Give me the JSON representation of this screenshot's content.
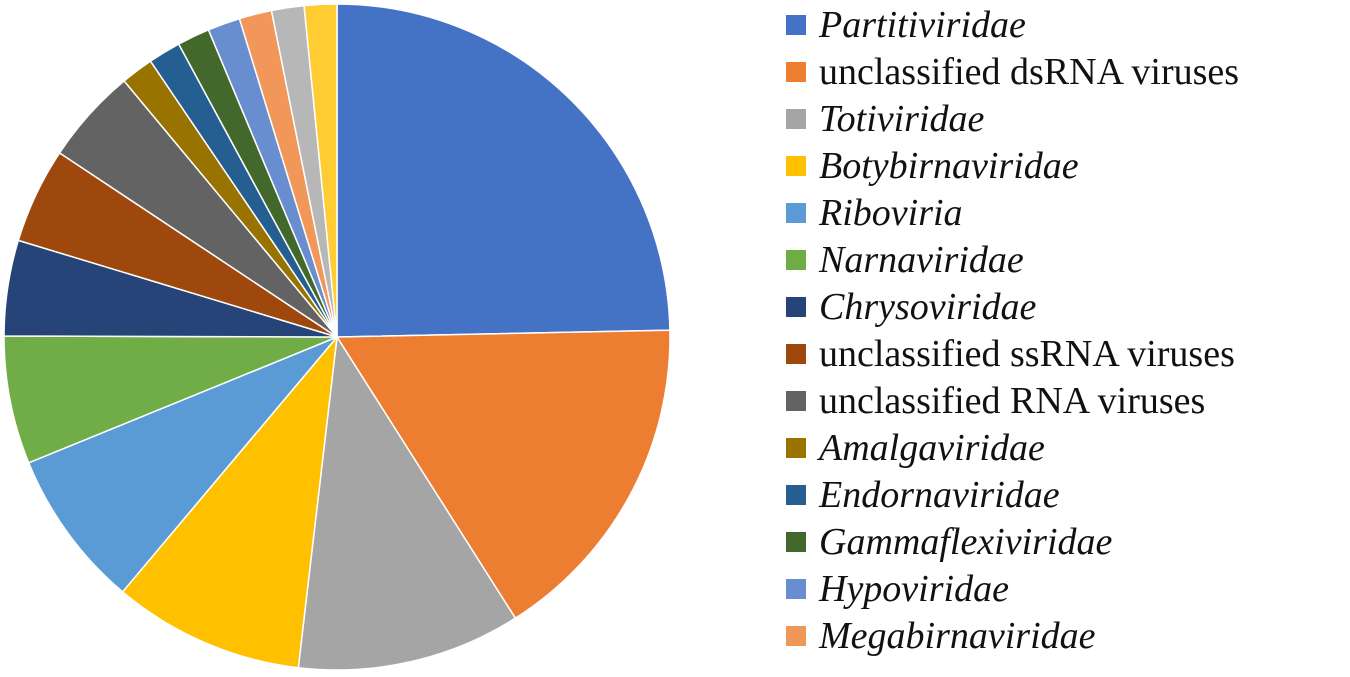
{
  "chart_data": {
    "type": "pie",
    "title": "",
    "legend_position": "right",
    "slices": [
      {
        "label": "Partitiviridae",
        "value": 26.6,
        "color": "#4472C4",
        "italic": true,
        "in_legend": true
      },
      {
        "label": "unclassified dsRNA viruses",
        "value": 17.6,
        "color": "#ED7D31",
        "italic": false,
        "in_legend": true
      },
      {
        "label": "Totiviridae",
        "value": 11.7,
        "color": "#A5A5A5",
        "italic": true,
        "in_legend": true
      },
      {
        "label": "Botybirnaviridae",
        "value": 10.0,
        "color": "#FFC000",
        "italic": true,
        "in_legend": true
      },
      {
        "label": "Riboviria",
        "value": 8.3,
        "color": "#5B9BD5",
        "italic": true,
        "in_legend": true
      },
      {
        "label": "Narnaviridae",
        "value": 6.7,
        "color": "#70AD47",
        "italic": true,
        "in_legend": true
      },
      {
        "label": "Chrysoviridae",
        "value": 5.0,
        "color": "#264478",
        "italic": true,
        "in_legend": true
      },
      {
        "label": "unclassified ssRNA viruses",
        "value": 5.0,
        "color": "#9E480E",
        "italic": false,
        "in_legend": true
      },
      {
        "label": "unclassified RNA viruses",
        "value": 5.0,
        "color": "#636363",
        "italic": false,
        "in_legend": true
      },
      {
        "label": "Amalgaviridae",
        "value": 1.7,
        "color": "#997300",
        "italic": true,
        "in_legend": true
      },
      {
        "label": "Endornaviridae",
        "value": 1.7,
        "color": "#255E91",
        "italic": true,
        "in_legend": true
      },
      {
        "label": "Gammaflexiviridae",
        "value": 1.7,
        "color": "#43682B",
        "italic": true,
        "in_legend": true
      },
      {
        "label": "Hypoviridae",
        "value": 1.7,
        "color": "#698ED0",
        "italic": true,
        "in_legend": true
      },
      {
        "label": "Megabirnaviridae",
        "value": 1.7,
        "color": "#F1975A",
        "italic": true,
        "in_legend": true
      },
      {
        "label": "",
        "value": 1.7,
        "color": "#B7B7B7",
        "italic": false,
        "in_legend": false
      },
      {
        "label": "",
        "value": 1.7,
        "color": "#FFCD33",
        "italic": false,
        "in_legend": false
      }
    ]
  }
}
